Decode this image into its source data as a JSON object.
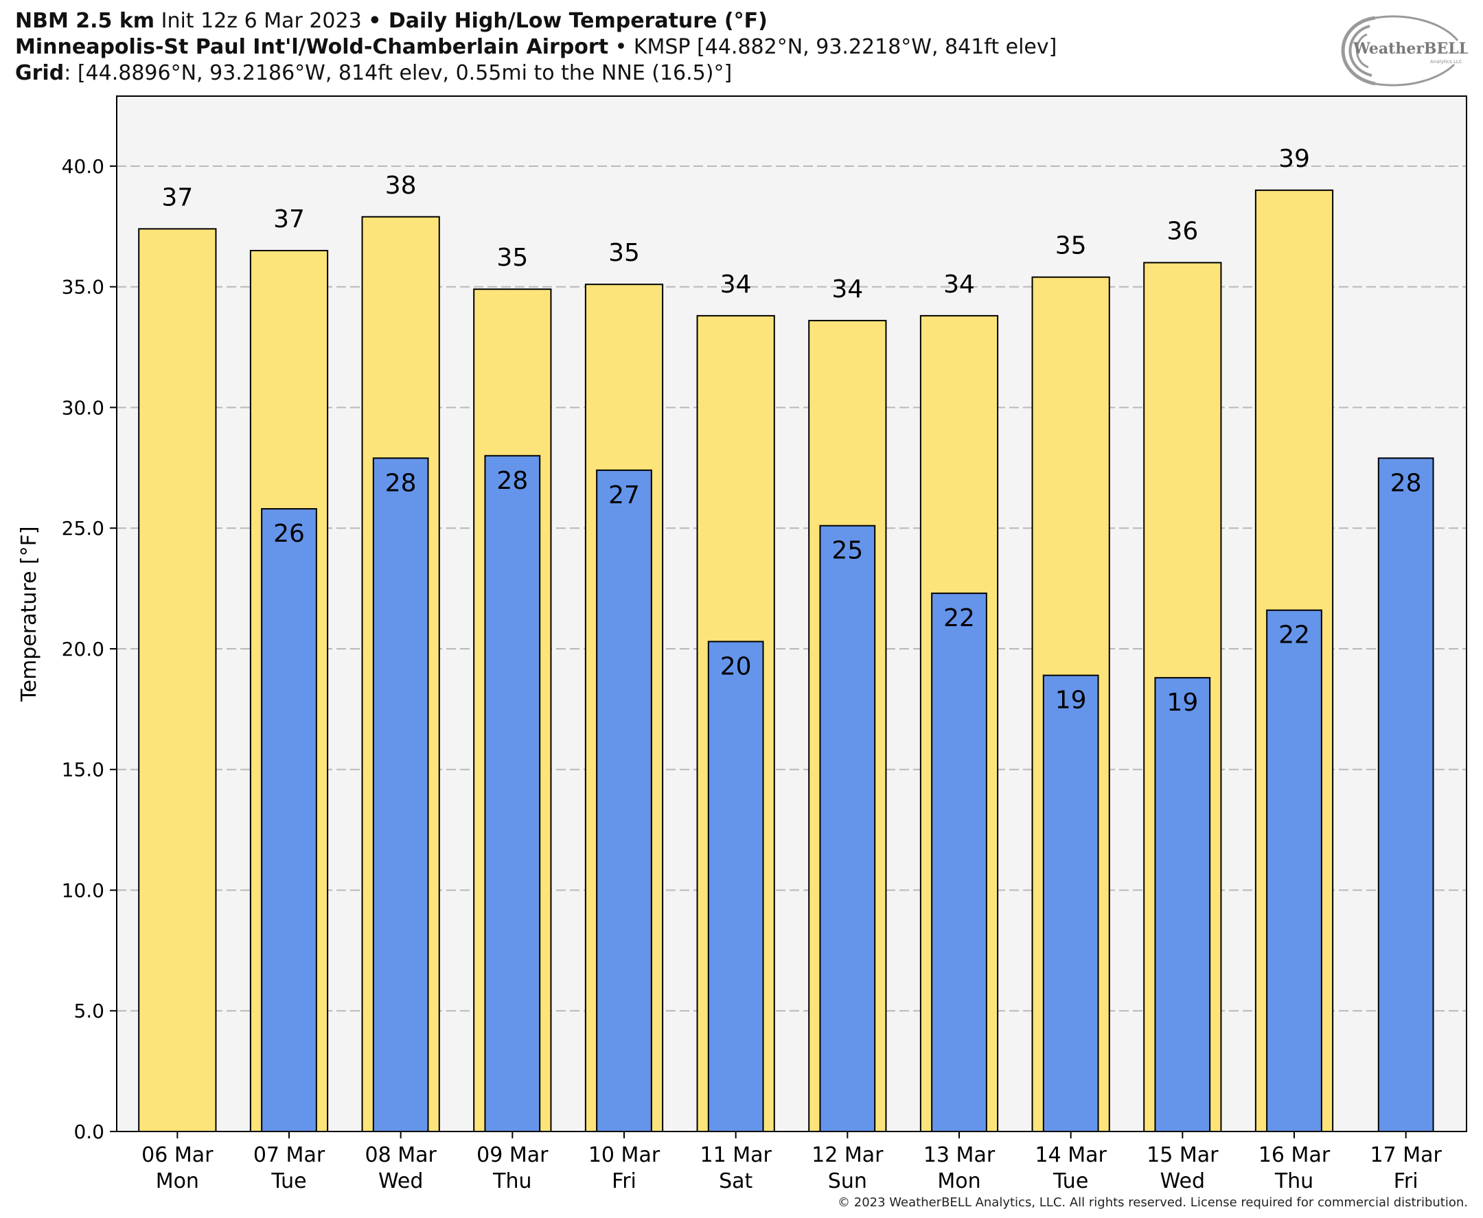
{
  "header": {
    "line1_bold_a": "NBM 2.5 km",
    "line1_text_a": " Init 12z 6 Mar 2023 ",
    "line1_sep": "•",
    "line1_bold_b": " Daily High/Low Temperature (°F)",
    "line2_bold_a": "Minneapolis-St Paul Int'l/Wold-Chamberlain Airport",
    "line2_text_a": " • KMSP [44.882°N, 93.2218°W, 841ft elev]",
    "line3_bold_a": "Grid",
    "line3_text_a": ": [44.8896°N, 93.2186°W, 814ft elev, 0.55mi to the NNE (16.5)°]"
  },
  "logo": {
    "text": "WeatherBELL",
    "subtext": "Analytics LLC"
  },
  "footer": "© 2023 WeatherBELL Analytics, LLC. All rights reserved. License required for commercial distribution.",
  "colors": {
    "high": "#fde47a",
    "low": "#6595ea",
    "plot_bg": "#f4f4f4",
    "grid": "#b8b8b8"
  },
  "chart_data": {
    "type": "bar",
    "ylabel": "Temperature [°F]",
    "ylim": [
      0,
      42.9
    ],
    "yticks": [
      0,
      5,
      10,
      15,
      20,
      25,
      30,
      35,
      40
    ],
    "ytick_labels": [
      "0.0",
      "5.0",
      "10.0",
      "15.0",
      "20.0",
      "25.0",
      "30.0",
      "35.0",
      "40.0"
    ],
    "grid": true,
    "categories": [
      {
        "date": "06 Mar",
        "day": "Mon"
      },
      {
        "date": "07 Mar",
        "day": "Tue"
      },
      {
        "date": "08 Mar",
        "day": "Wed"
      },
      {
        "date": "09 Mar",
        "day": "Thu"
      },
      {
        "date": "10 Mar",
        "day": "Fri"
      },
      {
        "date": "11 Mar",
        "day": "Sat"
      },
      {
        "date": "12 Mar",
        "day": "Sun"
      },
      {
        "date": "13 Mar",
        "day": "Mon"
      },
      {
        "date": "14 Mar",
        "day": "Tue"
      },
      {
        "date": "15 Mar",
        "day": "Wed"
      },
      {
        "date": "16 Mar",
        "day": "Thu"
      },
      {
        "date": "17 Mar",
        "day": "Fri"
      }
    ],
    "series": [
      {
        "key": "high",
        "values": [
          37.4,
          36.5,
          37.9,
          34.9,
          35.1,
          33.8,
          33.6,
          33.8,
          35.4,
          36.0,
          39.0,
          null
        ],
        "labels": [
          "37",
          "37",
          "38",
          "35",
          "35",
          "34",
          "34",
          "34",
          "35",
          "36",
          "39",
          ""
        ]
      },
      {
        "key": "low",
        "values": [
          null,
          25.8,
          27.9,
          28.0,
          27.4,
          20.3,
          25.1,
          22.3,
          18.9,
          18.8,
          21.6,
          27.9
        ],
        "labels": [
          "",
          "26",
          "28",
          "28",
          "27",
          "20",
          "25",
          "22",
          "19",
          "19",
          "22",
          "28"
        ]
      }
    ]
  }
}
